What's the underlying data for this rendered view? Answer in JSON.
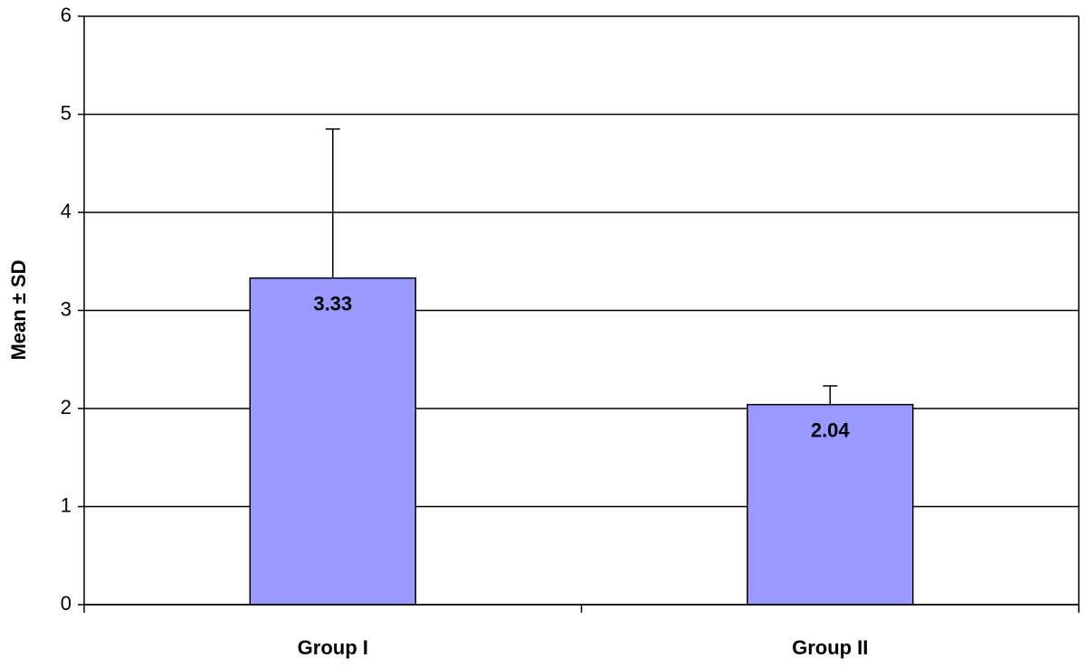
{
  "chart_data": {
    "type": "bar",
    "y_label": "Mean ± SD",
    "categories": [
      "Group I",
      "Group II"
    ],
    "values": [
      3.33,
      2.04
    ],
    "errors": [
      1.52,
      0.19
    ],
    "color": "#9999ff",
    "ylim": [
      0,
      6
    ],
    "yticks": [
      0,
      1,
      2,
      3,
      4,
      5,
      6
    ],
    "grid": true
  }
}
